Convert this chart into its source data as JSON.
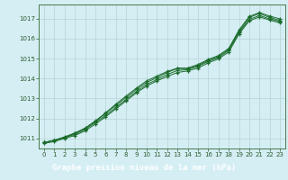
{
  "title": "Graphe pression niveau de la mer (hPa)",
  "bg_color": "#d4eef4",
  "plot_bg_color": "#d4eef4",
  "grid_color": "#b8d4d4",
  "line_color": "#1a6b2a",
  "marker_color": "#1a6b2a",
  "label_bg_color": "#2d6b2a",
  "label_text_color": "#ffffff",
  "tick_color": "#2d5a2d",
  "spine_color": "#4a7a4a",
  "xlim": [
    -0.5,
    23.5
  ],
  "ylim": [
    1010.5,
    1017.7
  ],
  "yticks": [
    1011,
    1012,
    1013,
    1014,
    1015,
    1016,
    1017
  ],
  "xticks": [
    0,
    1,
    2,
    3,
    4,
    5,
    6,
    7,
    8,
    9,
    10,
    11,
    12,
    13,
    14,
    15,
    16,
    17,
    18,
    19,
    20,
    21,
    22,
    23
  ],
  "line1": [
    1010.8,
    1010.9,
    1011.05,
    1011.25,
    1011.5,
    1011.85,
    1012.25,
    1012.65,
    1013.05,
    1013.45,
    1013.8,
    1014.05,
    1014.3,
    1014.5,
    1014.5,
    1014.65,
    1014.9,
    1015.1,
    1015.45,
    1016.35,
    1017.05,
    1017.25,
    1017.05,
    1016.9
  ],
  "line2": [
    1010.8,
    1010.9,
    1011.05,
    1011.2,
    1011.45,
    1011.8,
    1012.15,
    1012.55,
    1012.95,
    1013.35,
    1013.7,
    1013.95,
    1014.2,
    1014.4,
    1014.45,
    1014.6,
    1014.85,
    1015.05,
    1015.4,
    1016.3,
    1016.95,
    1017.15,
    1016.98,
    1016.85
  ],
  "line3": [
    1010.8,
    1010.92,
    1011.08,
    1011.28,
    1011.52,
    1011.88,
    1012.28,
    1012.72,
    1013.12,
    1013.52,
    1013.88,
    1014.12,
    1014.35,
    1014.52,
    1014.52,
    1014.7,
    1014.95,
    1015.15,
    1015.5,
    1016.42,
    1017.1,
    1017.3,
    1017.12,
    1016.98
  ],
  "line4": [
    1010.75,
    1010.85,
    1011.0,
    1011.15,
    1011.38,
    1011.72,
    1012.08,
    1012.48,
    1012.88,
    1013.28,
    1013.62,
    1013.88,
    1014.1,
    1014.3,
    1014.38,
    1014.52,
    1014.78,
    1014.98,
    1015.32,
    1016.22,
    1016.88,
    1017.08,
    1016.92,
    1016.78
  ]
}
